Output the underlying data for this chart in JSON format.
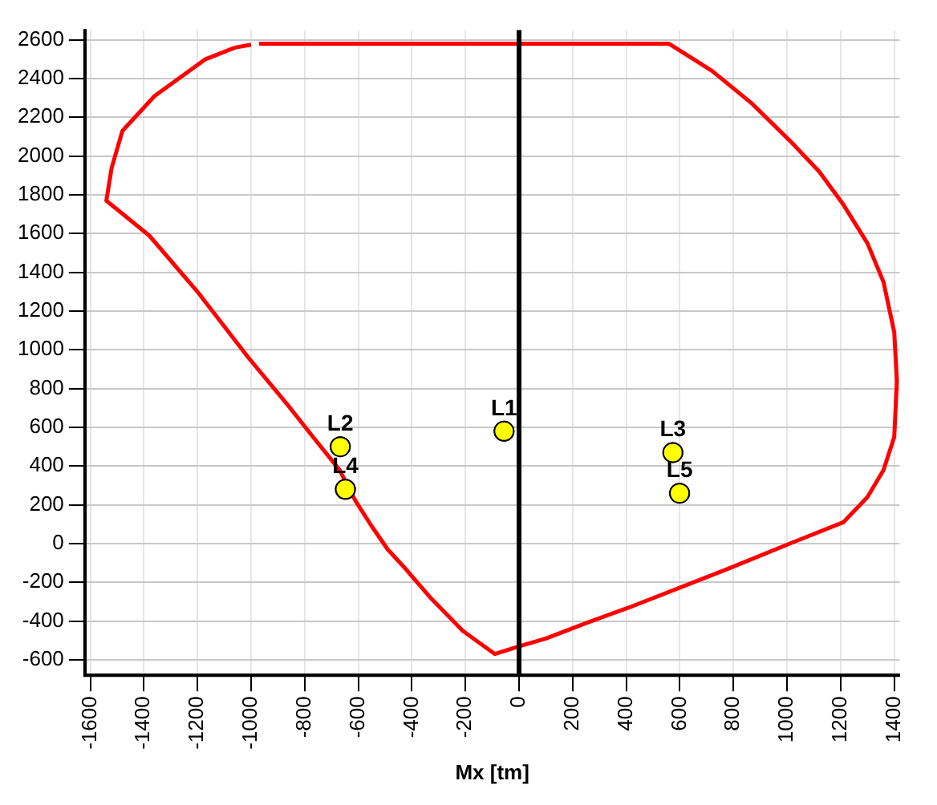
{
  "chart_data": {
    "type": "scatter",
    "xlabel": "Mx [tm]",
    "xlim": [
      -1620,
      1420
    ],
    "ylim": [
      -680,
      2650
    ],
    "xticks": [
      -1600,
      -1400,
      -1200,
      -1000,
      -800,
      -600,
      -400,
      -200,
      0,
      200,
      400,
      600,
      800,
      1000,
      1200,
      1400
    ],
    "yticks": [
      -600,
      -400,
      -200,
      0,
      200,
      400,
      600,
      800,
      1000,
      1200,
      1400,
      1600,
      1800,
      2000,
      2200,
      2400,
      2600
    ],
    "grid": true,
    "legend": false,
    "ref_lines": [
      {
        "axis": "x",
        "value": 0,
        "color": "#000000"
      }
    ],
    "series": [
      {
        "type": "line",
        "color": "#ff0000",
        "marker": "none",
        "line_style": "solid",
        "x": [
          -970,
          560,
          720,
          870,
          1010,
          1120,
          1210,
          1300,
          1360,
          1400,
          1410,
          1400,
          1360,
          1300,
          1210,
          1010,
          780,
          410,
          250,
          100,
          0,
          -90,
          -210,
          -330,
          -430,
          -490,
          -550,
          -610,
          -670,
          -780,
          -860,
          -1010,
          -1200,
          -1380,
          -1540,
          -1520,
          -1480,
          -1360,
          -1170,
          -1060,
          -1000
        ],
        "values": [
          2580,
          2580,
          2440,
          2270,
          2080,
          1920,
          1750,
          1550,
          1350,
          1090,
          840,
          550,
          380,
          240,
          110,
          0,
          -130,
          -330,
          -410,
          -490,
          -530,
          -570,
          -450,
          -280,
          -120,
          -30,
          90,
          220,
          380,
          570,
          710,
          960,
          1300,
          1590,
          1770,
          1940,
          2130,
          2310,
          2500,
          2560,
          2575
        ]
      },
      {
        "type": "scatter",
        "color": "#ffff00",
        "marker": "circle",
        "x": [
          -56,
          -667,
          574,
          -648,
          599
        ],
        "values": [
          580,
          500,
          470,
          280,
          260
        ]
      }
    ],
    "annotations": [
      {
        "text": "L1",
        "x": -56,
        "y": 580
      },
      {
        "text": "L2",
        "x": -667,
        "y": 500
      },
      {
        "text": "L3",
        "x": 574,
        "y": 470
      },
      {
        "text": "L4",
        "x": -648,
        "y": 280
      },
      {
        "text": "L5",
        "x": 599,
        "y": 260
      }
    ]
  }
}
